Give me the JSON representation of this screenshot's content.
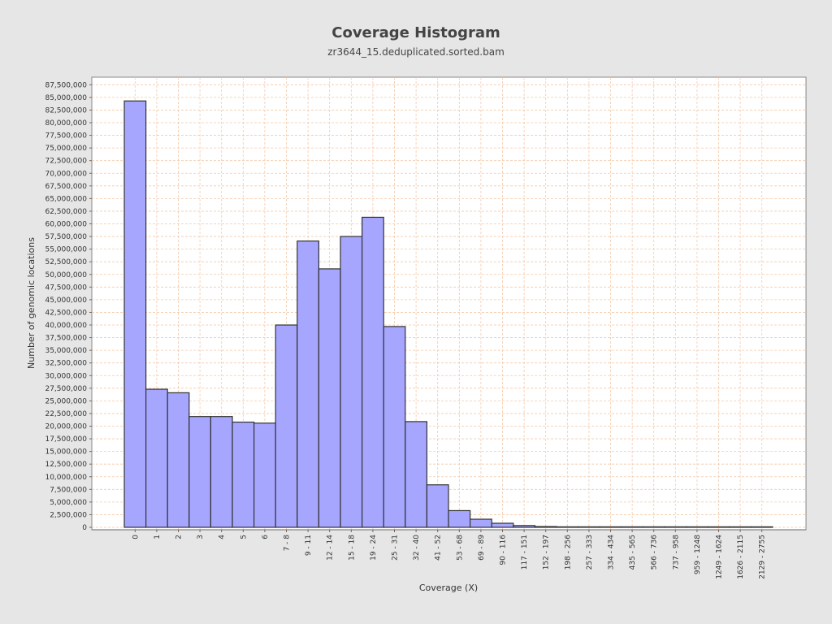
{
  "chart_data": {
    "type": "bar",
    "title": "Coverage Histogram",
    "subtitle": "zr3644_15.deduplicated.sorted.bam",
    "xlabel": "Coverage (X)",
    "ylabel": "Number of genomic locations",
    "ylim": [
      0,
      89000000
    ],
    "yticks": [
      0,
      2500000,
      5000000,
      7500000,
      10000000,
      12500000,
      15000000,
      17500000,
      20000000,
      22500000,
      25000000,
      27500000,
      30000000,
      32500000,
      35000000,
      37500000,
      40000000,
      42500000,
      45000000,
      47500000,
      50000000,
      52500000,
      55000000,
      57500000,
      60000000,
      62500000,
      65000000,
      67500000,
      70000000,
      72500000,
      75000000,
      77500000,
      80000000,
      82500000,
      85000000,
      87500000
    ],
    "ytick_labels": [
      "0",
      "2,500,000",
      "5,000,000",
      "7,500,000",
      "10,000,000",
      "12,500,000",
      "15,000,000",
      "17,500,000",
      "20,000,000",
      "22,500,000",
      "25,000,000",
      "27,500,000",
      "30,000,000",
      "32,500,000",
      "35,000,000",
      "37,500,000",
      "40,000,000",
      "42,500,000",
      "45,000,000",
      "47,500,000",
      "50,000,000",
      "52,500,000",
      "55,000,000",
      "57,500,000",
      "60,000,000",
      "62,500,000",
      "65,000,000",
      "67,500,000",
      "70,000,000",
      "72,500,000",
      "75,000,000",
      "77,500,000",
      "80,000,000",
      "82,500,000",
      "85,000,000",
      "87,500,000"
    ],
    "categories": [
      "0",
      "1",
      "2",
      "3",
      "4",
      "5",
      "6",
      "7 - 8",
      "9 - 11",
      "12 - 14",
      "15 - 18",
      "19 - 24",
      "25 - 31",
      "32 - 40",
      "41 - 52",
      "53 - 68",
      "69 - 89",
      "90 - 116",
      "117 - 151",
      "152 - 197",
      "198 - 256",
      "257 - 333",
      "334 - 434",
      "435 - 565",
      "566 - 736",
      "737 - 958",
      "959 - 1248",
      "1249 - 1624",
      "1626 - 2115",
      "2129 - 2755"
    ],
    "values": [
      84300000,
      27300000,
      26600000,
      21900000,
      21900000,
      20800000,
      20600000,
      40000000,
      56600000,
      51100000,
      57500000,
      61300000,
      39700000,
      20900000,
      8400000,
      3300000,
      1600000,
      800000,
      350000,
      150000,
      80000,
      40000,
      20000,
      10000,
      5000,
      3000,
      2000,
      1000,
      500,
      300
    ],
    "grid": true,
    "colors": {
      "bar_fill": "#a6a6ff",
      "bar_stroke": "#333333",
      "grid": "#f4c9a8",
      "plot_bg": "#ffffff",
      "page_bg": "#e6e6e6"
    }
  }
}
